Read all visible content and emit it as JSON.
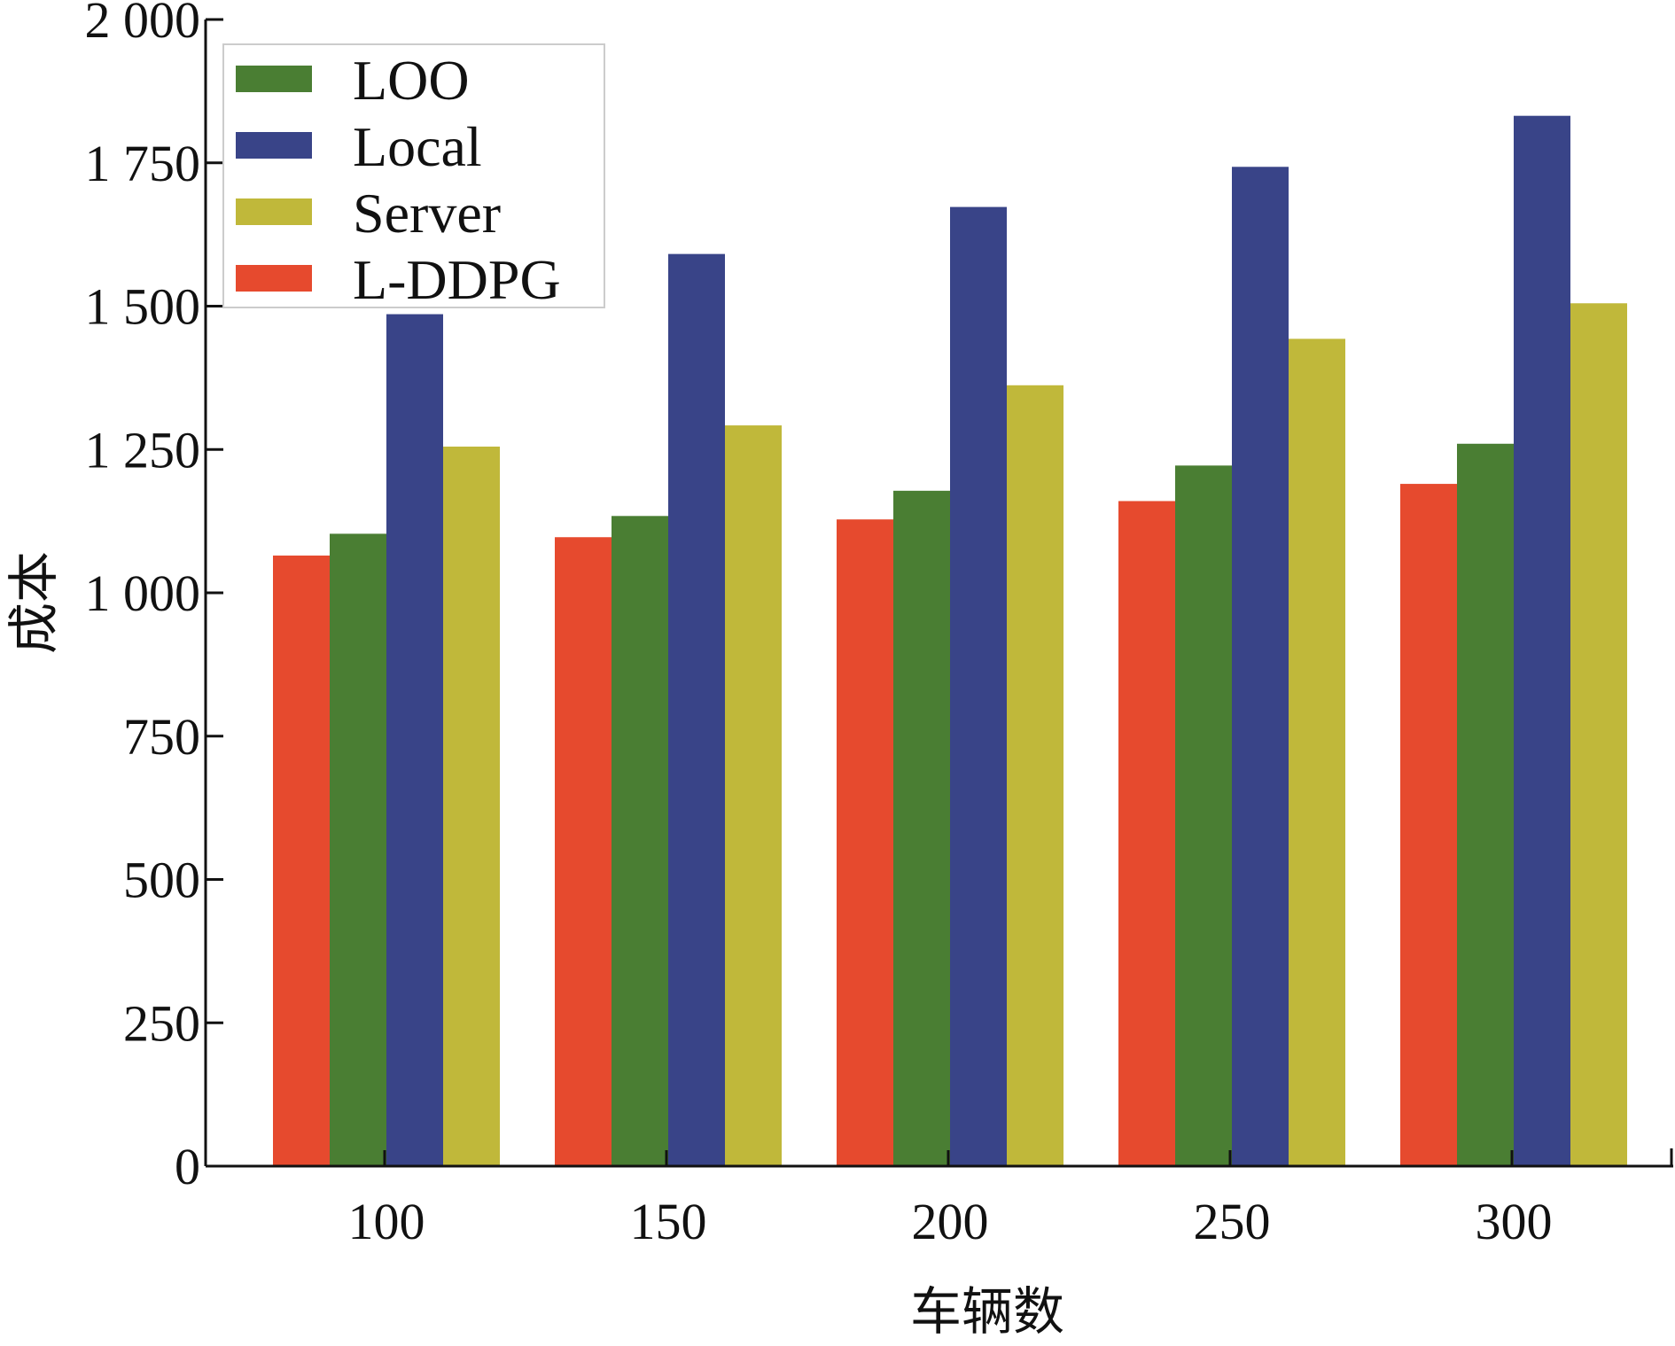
{
  "chart_data": {
    "type": "bar",
    "xlabel": "车辆数",
    "ylabel": "成本",
    "categories": [
      "100",
      "150",
      "200",
      "250",
      "300"
    ],
    "ylim": [
      0,
      2000
    ],
    "yticks": [
      0,
      250,
      500,
      750,
      1000,
      1250,
      1500,
      1750,
      2000
    ],
    "ytick_labels": [
      "0",
      "250",
      "500",
      "750",
      "1 000",
      "1 250",
      "1 500",
      "1 750",
      "2 000"
    ],
    "grid": false,
    "legend_position": "top-left",
    "series": [
      {
        "name": "L-DDPG",
        "color": "#e64a2e",
        "values": [
          1065,
          1097,
          1128,
          1160,
          1190
        ]
      },
      {
        "name": "LOO",
        "color": "#4a7e33",
        "values": [
          1103,
          1134,
          1178,
          1222,
          1260
        ]
      },
      {
        "name": "Local",
        "color": "#394488",
        "values": [
          1486,
          1591,
          1673,
          1743,
          1832
        ]
      },
      {
        "name": "Server",
        "color": "#c0b83a",
        "values": [
          1255,
          1292,
          1362,
          1443,
          1505
        ]
      }
    ],
    "legend_order": [
      "LOO",
      "Local",
      "Server",
      "L-DDPG"
    ]
  }
}
